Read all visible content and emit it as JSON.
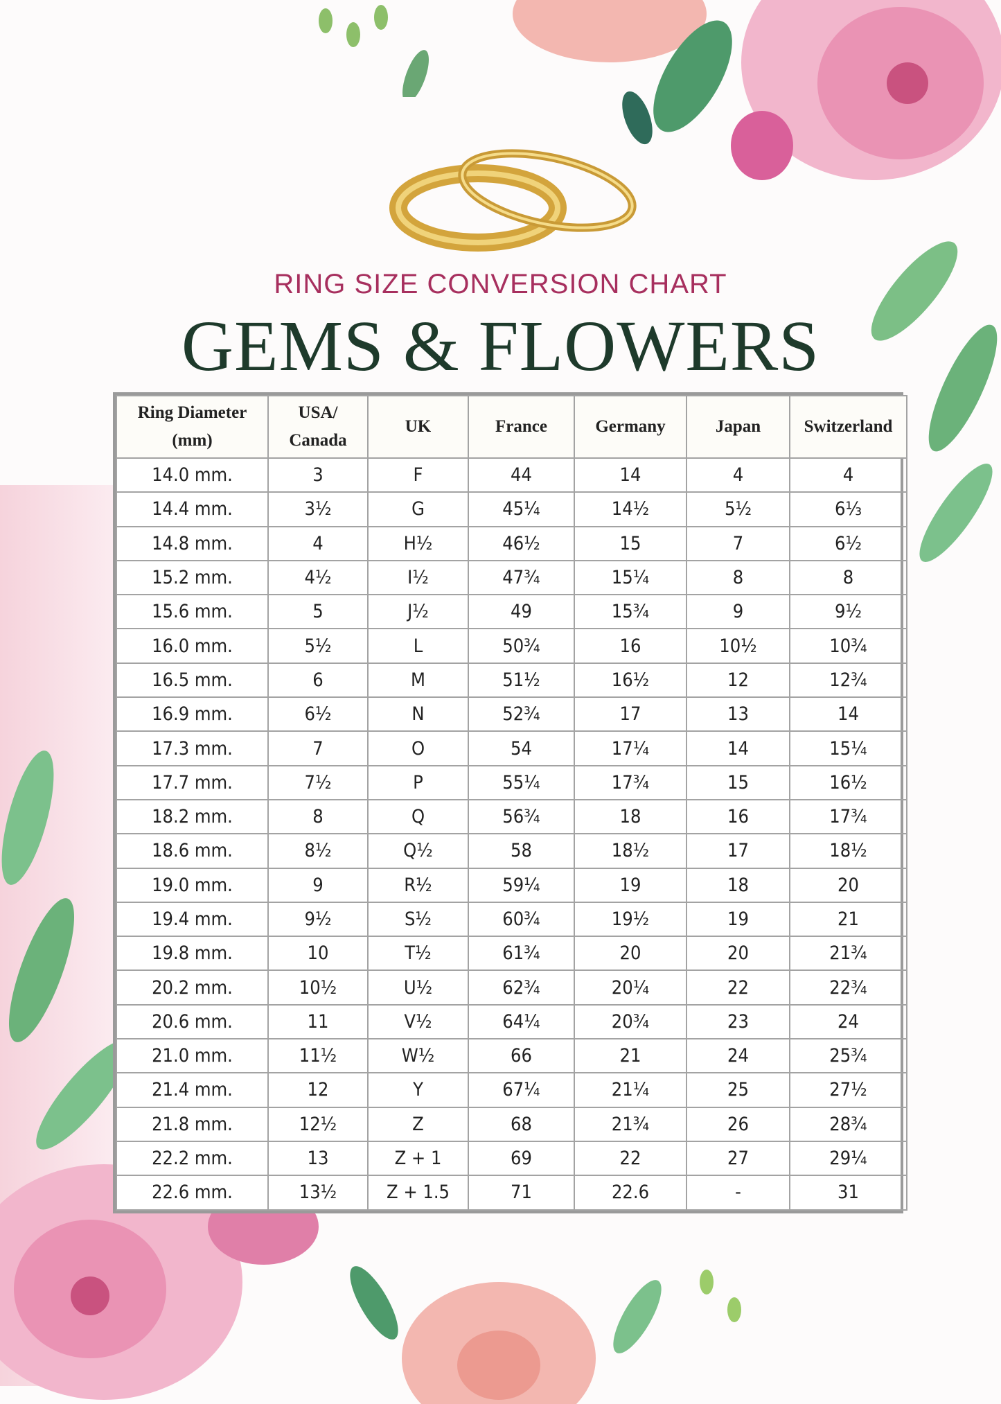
{
  "header": {
    "subtitle": "RING SIZE CONVERSION CHART",
    "title": "GEMS & FLOWERS"
  },
  "colors": {
    "subtitle": "#a72f5e",
    "title": "#1e3a2b",
    "grid": "#9a9a9a",
    "flower_pink": "#e88fb2",
    "leaf_green": "#6db07a",
    "gold": "#d9b04a"
  },
  "table": {
    "headers": [
      "Ring Diameter (mm)",
      "USA/ Canada",
      "UK",
      "France",
      "Germany",
      "Japan",
      "Switzerland"
    ],
    "rows": [
      [
        "14.0 mm.",
        "3",
        "F",
        "44",
        "14",
        "4",
        "4"
      ],
      [
        "14.4 mm.",
        "3½",
        "G",
        "45¼",
        "14½",
        "5½",
        "6⅓"
      ],
      [
        "14.8 mm.",
        "4",
        "H½",
        "46½",
        "15",
        "7",
        "6½"
      ],
      [
        "15.2 mm.",
        "4½",
        "I½",
        "47¾",
        "15¼",
        "8",
        "8"
      ],
      [
        "15.6 mm.",
        "5",
        "J½",
        "49",
        "15¾",
        "9",
        "9½"
      ],
      [
        "16.0 mm.",
        "5½",
        "L",
        "50¾",
        "16",
        "10½",
        "10¾"
      ],
      [
        "16.5 mm.",
        "6",
        "M",
        "51½",
        "16½",
        "12",
        "12¾"
      ],
      [
        "16.9 mm.",
        "6½",
        "N",
        "52¾",
        "17",
        "13",
        "14"
      ],
      [
        "17.3 mm.",
        "7",
        "O",
        "54",
        "17¼",
        "14",
        "15¼"
      ],
      [
        "17.7 mm.",
        "7½",
        "P",
        "55¼",
        "17¾",
        "15",
        "16½"
      ],
      [
        "18.2 mm.",
        "8",
        "Q",
        "56¾",
        "18",
        "16",
        "17¾"
      ],
      [
        "18.6 mm.",
        "8½",
        "Q½",
        "58",
        "18½",
        "17",
        "18½"
      ],
      [
        "19.0 mm.",
        "9",
        "R½",
        "59¼",
        "19",
        "18",
        "20"
      ],
      [
        "19.4 mm.",
        "9½",
        "S½",
        "60¾",
        "19½",
        "19",
        "21"
      ],
      [
        "19.8 mm.",
        "10",
        "T½",
        "61¾",
        "20",
        "20",
        "21¾"
      ],
      [
        "20.2 mm.",
        "10½",
        "U½",
        "62¾",
        "20¼",
        "22",
        "22¾"
      ],
      [
        "20.6 mm.",
        "11",
        "V½",
        "64¼",
        "20¾",
        "23",
        "24"
      ],
      [
        "21.0 mm.",
        "11½",
        "W½",
        "66",
        "21",
        "24",
        "25¾"
      ],
      [
        "21.4 mm.",
        "12",
        "Y",
        "67¼",
        "21¼",
        "25",
        "27½"
      ],
      [
        "21.8 mm.",
        "12½",
        "Z",
        "68",
        "21¾",
        "26",
        "28¾"
      ],
      [
        "22.2 mm.",
        "13",
        "Z + 1",
        "69",
        "22",
        "27",
        "29¼"
      ],
      [
        "22.6 mm.",
        "13½",
        "Z + 1.5",
        "71",
        "22.6",
        "-",
        "31"
      ]
    ]
  }
}
